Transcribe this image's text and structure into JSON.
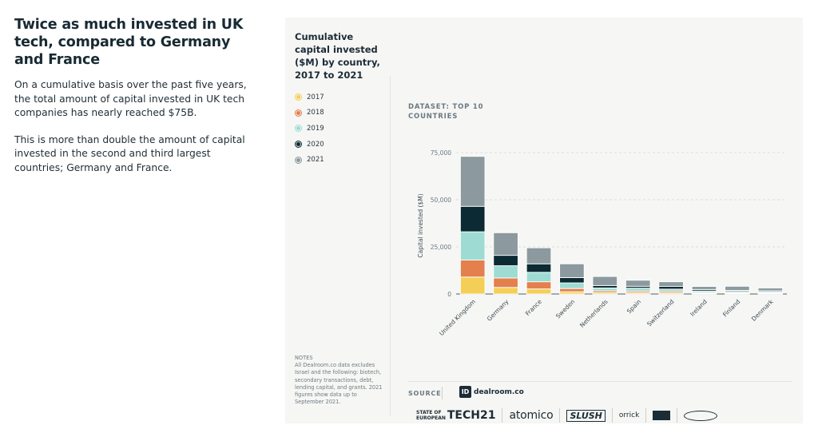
{
  "intro": {
    "headline": "Twice as much invested in UK tech, compared to Germany and France",
    "paragraph1": "On a cumulative basis over the past five years, the total amount of capital invested in UK tech companies has nearly reached $75B.",
    "paragraph2": "This is more than double the amount of capital invested in the second and third largest countries; Germany and France."
  },
  "card": {
    "title": "Cumulative capital invested ($M) by country, 2017 to 2021",
    "dataset": "DATASET: TOP 10 COUNTRIES",
    "notes": "NOTES\nAll Dealroom.co data excludes Israel and the following: biotech, secondary transactions, debt, lending capital, and grants. 2021 figures show data up to September 2021.",
    "source_label": "SOURCE",
    "source_brand": "dealroom.co",
    "source_mark": "ID"
  },
  "partners": {
    "sotet_line1": "STATE OF",
    "sotet_line2": "EUROPEAN",
    "sotet_big": "TECH21",
    "atomico": "atomico",
    "slush": "SLUSH",
    "orrick": "orrick"
  },
  "colors": {
    "2017": "#f4cf58",
    "2018": "#e3804d",
    "2019": "#9edcd3",
    "2020": "#0c2a33",
    "2021": "#8c9a9f",
    "grid": "#d4d7d6",
    "text": "#1b2c36"
  },
  "chart_data": {
    "type": "bar",
    "stacked": true,
    "ylabel": "Capital invested ($M)",
    "ylim": [
      0,
      75000
    ],
    "yticks": [
      0,
      25000,
      50000,
      75000
    ],
    "ytick_labels": [
      "0",
      "25,000",
      "50,000",
      "75,000"
    ],
    "grid": true,
    "legend_position": "left",
    "categories": [
      "United Kingdom",
      "Germany",
      "France",
      "Sweden",
      "Netherlands",
      "Spain",
      "Switzerland",
      "Ireland",
      "Finland",
      "Denmark"
    ],
    "series": [
      {
        "name": "2017",
        "values": [
          9000,
          3500,
          2700,
          1200,
          800,
          700,
          600,
          400,
          300,
          300
        ]
      },
      {
        "name": "2018",
        "values": [
          9000,
          5000,
          3800,
          1700,
          900,
          800,
          800,
          400,
          400,
          300
        ]
      },
      {
        "name": "2019",
        "values": [
          15000,
          6500,
          5000,
          3000,
          1500,
          1600,
          1200,
          800,
          700,
          600
        ]
      },
      {
        "name": "2020",
        "values": [
          13500,
          5500,
          4500,
          2800,
          1300,
          1000,
          1400,
          800,
          500,
          500
        ]
      },
      {
        "name": "2021",
        "values": [
          26500,
          12000,
          8500,
          7300,
          4800,
          3200,
          2500,
          1600,
          2200,
          1500
        ]
      }
    ]
  }
}
